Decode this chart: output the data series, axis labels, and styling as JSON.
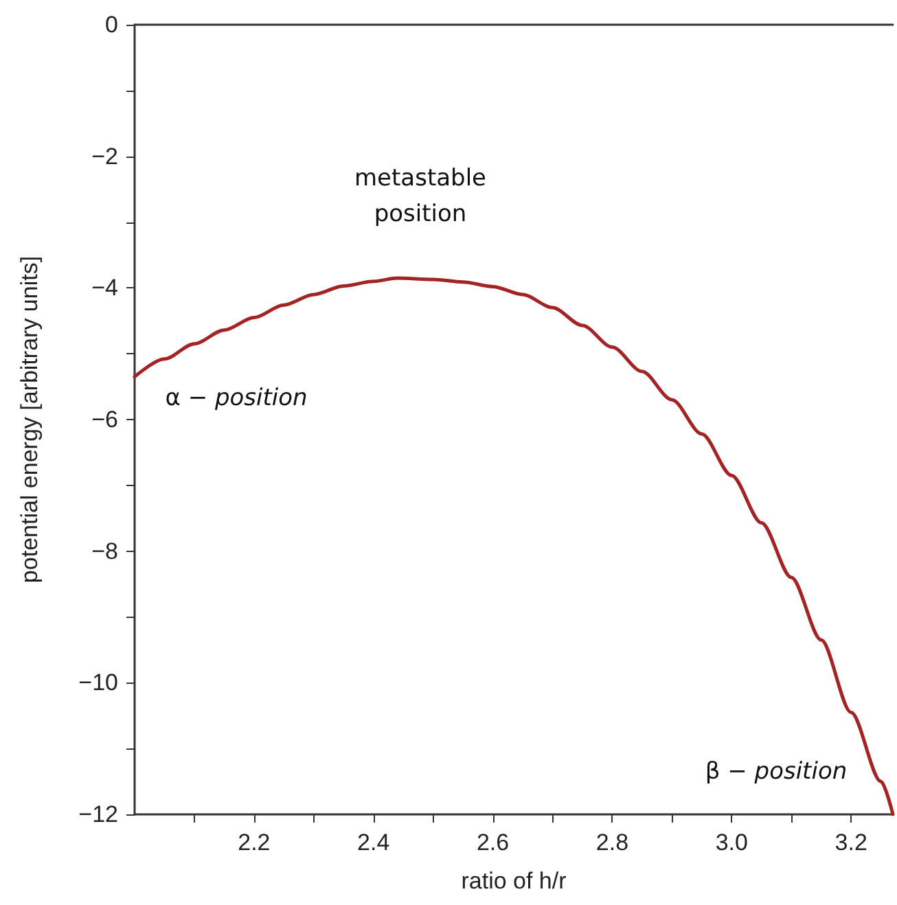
{
  "chart_data": {
    "type": "line",
    "xlabel": "ratio of h/r",
    "ylabel": "potential energy [arbitrary units]",
    "x": [
      2.0,
      2.05,
      2.1,
      2.15,
      2.2,
      2.25,
      2.3,
      2.35,
      2.4,
      2.44,
      2.5,
      2.55,
      2.6,
      2.65,
      2.7,
      2.75,
      2.8,
      2.85,
      2.9,
      2.95,
      3.0,
      3.05,
      3.1,
      3.15,
      3.2,
      3.25,
      3.27
    ],
    "series": [
      {
        "color": "#a32424",
        "values": [
          -5.35,
          -5.08,
          -4.85,
          -4.64,
          -4.45,
          -4.26,
          -4.1,
          -3.97,
          -3.9,
          -3.85,
          -3.87,
          -3.91,
          -3.98,
          -4.1,
          -4.3,
          -4.57,
          -4.9,
          -5.27,
          -5.7,
          -6.22,
          -6.85,
          -7.57,
          -8.4,
          -9.35,
          -10.45,
          -11.5,
          -12.0
        ]
      }
    ],
    "xlim": [
      2.0,
      3.27
    ],
    "ylim": [
      -12,
      0
    ],
    "xticks": [
      {
        "value": 2.1,
        "label": null
      },
      2.2,
      {
        "value": 2.3,
        "label": null
      },
      2.4,
      {
        "value": 2.5,
        "label": null
      },
      2.6,
      {
        "value": 2.7,
        "label": null
      },
      2.8,
      {
        "value": 2.9,
        "label": null
      },
      {
        "value": 3.0,
        "label": "3.0"
      },
      {
        "value": 3.1,
        "label": null
      },
      3.2
    ],
    "yticks": [
      {
        "value": -12,
        "label": "−12"
      },
      {
        "value": -11,
        "label": null
      },
      {
        "value": -10,
        "label": "−10"
      },
      {
        "value": -9,
        "label": null
      },
      {
        "value": -8,
        "label": "−8"
      },
      {
        "value": -7,
        "label": null
      },
      {
        "value": -6,
        "label": "−6"
      },
      {
        "value": -5,
        "label": null
      },
      {
        "value": -4,
        "label": "−4"
      },
      {
        "value": -3,
        "label": null
      },
      {
        "value": -2,
        "label": "−2"
      },
      {
        "value": -1,
        "label": null
      },
      {
        "value": 0,
        "label": "0"
      }
    ],
    "annotations": [
      "metastable\nposition",
      "α − position",
      "β − position"
    ],
    "grid": false,
    "marker": "none",
    "line_style": "solid"
  }
}
